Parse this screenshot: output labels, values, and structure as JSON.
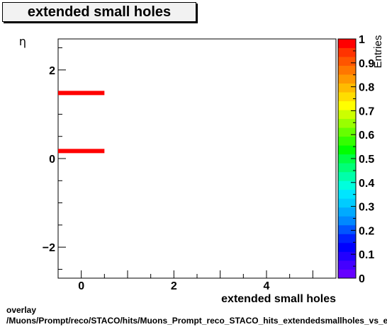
{
  "chart_data": {
    "type": "heatmap",
    "title": "extended small holes",
    "xlabel": "extended small holes",
    "ylabel": "η",
    "zlabel": "Entries",
    "xlim": [
      -0.5,
      5.5
    ],
    "ylim": [
      -2.7,
      2.7
    ],
    "zlim": [
      0,
      1
    ],
    "x_ticks": [
      0,
      2,
      4
    ],
    "y_ticks": [
      -2,
      0,
      2
    ],
    "z_ticks": [
      0,
      0.1,
      0.2,
      0.3,
      0.4,
      0.5,
      0.6,
      0.7,
      0.8,
      0.9,
      1
    ],
    "cells": [
      {
        "x_range": [
          -0.5,
          0.5
        ],
        "y": 1.48,
        "value": 1
      },
      {
        "x_range": [
          -0.5,
          0.5
        ],
        "y": 0.17,
        "value": 1
      }
    ],
    "palette": [
      "#6600ff",
      "#4400ff",
      "#2200ff",
      "#0000ff",
      "#0022ff",
      "#0055ff",
      "#0088ff",
      "#00aaff",
      "#00ccff",
      "#00e5ff",
      "#00ffdd",
      "#00ffaa",
      "#00ff77",
      "#00ff44",
      "#00ff00",
      "#33ff00",
      "#66ff00",
      "#99ff00",
      "#ccff00",
      "#ffff00",
      "#ffdd00",
      "#ffbb00",
      "#ff9900",
      "#ff7700",
      "#ff5500",
      "#ff3300",
      "#ff0000"
    ]
  },
  "footer": {
    "line1": "overlay",
    "line2": "/Muons/Prompt/reco/STACO/hits/Muons_Prompt_reco_STACO_hits_extendedsmallholes_vs_eta"
  }
}
